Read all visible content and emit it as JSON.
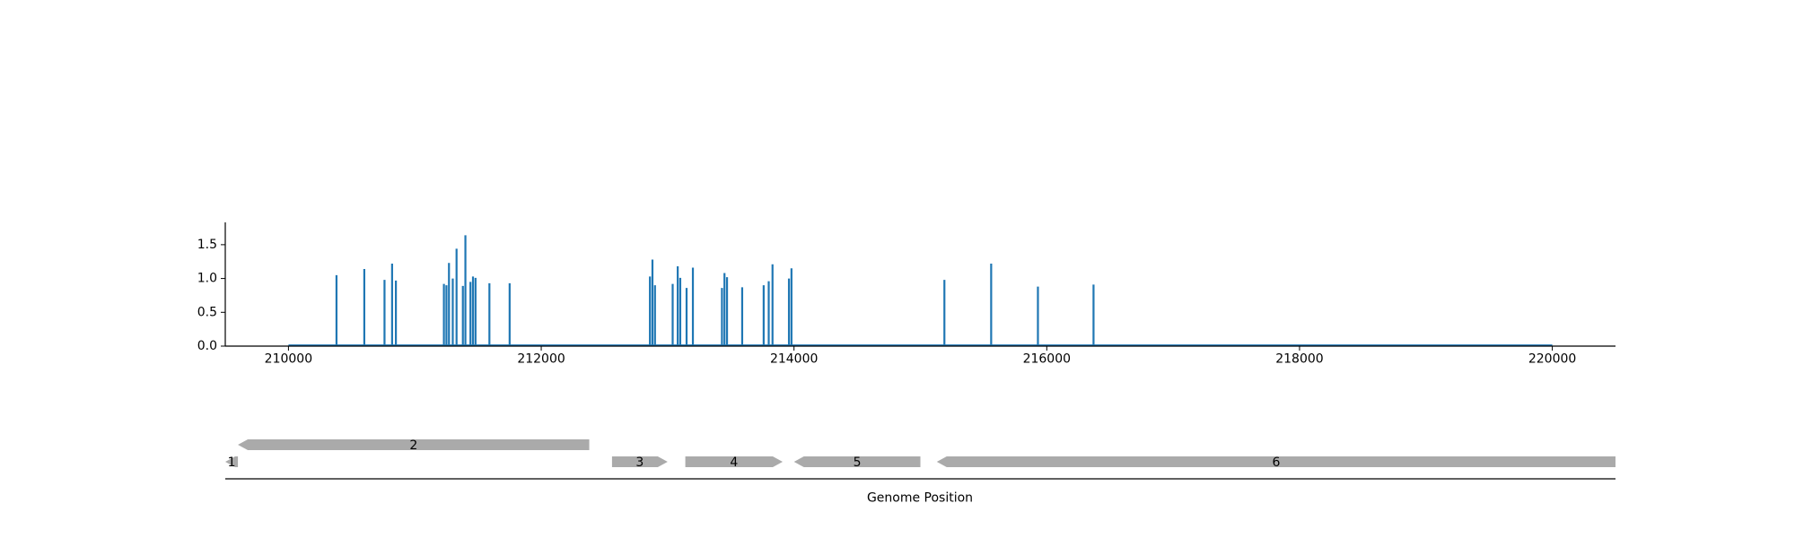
{
  "chart_data": [
    {
      "type": "bar",
      "title": "",
      "xlabel": "",
      "ylabel": "",
      "xlim": [
        209500,
        220500
      ],
      "ylim": [
        0,
        1.8
      ],
      "xticks": [
        210000,
        212000,
        214000,
        216000,
        218000,
        220000
      ],
      "xtick_labels": [
        "210000",
        "212000",
        "214000",
        "216000",
        "218000",
        "220000"
      ],
      "yticks": [
        0.0,
        0.5,
        1.0,
        1.5
      ],
      "ytick_labels": [
        "0.0",
        "0.5",
        "1.0",
        "1.5"
      ],
      "baseline": [
        210000,
        220000
      ],
      "grid": false,
      "legend": "none",
      "color": "#1f77b4",
      "series": [
        {
          "x": [
            210380,
            210600,
            210760,
            210820,
            210850,
            211230,
            211250,
            211270,
            211300,
            211330,
            211380,
            211400,
            211440,
            211460,
            211480,
            211590,
            211750,
            212860,
            212880,
            212900,
            213040,
            213080,
            213100,
            213150,
            213200,
            213430,
            213450,
            213470,
            213590,
            213760,
            213800,
            213830,
            213960,
            213980,
            215190,
            215560,
            215930,
            216370
          ],
          "values": [
            1.05,
            1.14,
            0.98,
            1.22,
            0.97,
            0.92,
            0.9,
            1.23,
            1.0,
            1.44,
            0.89,
            1.64,
            0.95,
            1.03,
            1.01,
            0.93,
            0.93,
            1.03,
            1.28,
            0.9,
            0.92,
            1.18,
            1.01,
            0.86,
            1.16,
            0.86,
            1.08,
            1.02,
            0.87,
            0.9,
            0.96,
            1.21,
            1.0,
            1.15,
            0.98,
            1.22,
            0.88,
            0.91
          ]
        }
      ]
    },
    {
      "type": "gene-map",
      "xlabel": "Genome Position",
      "xlim": [
        209500,
        220500
      ],
      "color": "#aaaaaa",
      "genes": [
        {
          "label": "1",
          "start": 209500,
          "end": 209600,
          "strand": -1,
          "track": 0
        },
        {
          "label": "2",
          "start": 209600,
          "end": 212380,
          "strand": -1,
          "track": 1
        },
        {
          "label": "3",
          "start": 212560,
          "end": 213000,
          "strand": 1,
          "track": 0
        },
        {
          "label": "4",
          "start": 213140,
          "end": 213910,
          "strand": 1,
          "track": 0
        },
        {
          "label": "5",
          "start": 214000,
          "end": 215000,
          "strand": -1,
          "track": 0
        },
        {
          "label": "6",
          "start": 215130,
          "end": 220500,
          "strand": -1,
          "track": 0
        }
      ]
    }
  ]
}
